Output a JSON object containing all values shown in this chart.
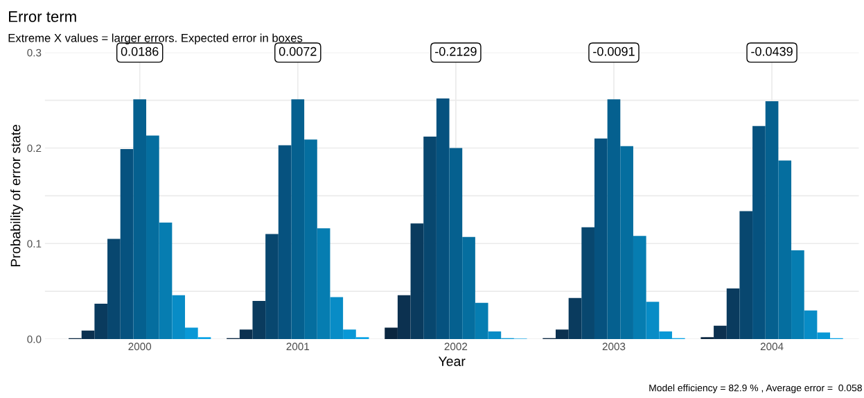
{
  "chart_data": {
    "type": "bar",
    "title": "Error term",
    "subtitle": "Extreme X values = larger errors. Expected error in boxes",
    "xlabel": "Year",
    "ylabel": "Probability of error state",
    "categories": [
      "2000",
      "2001",
      "2002",
      "2003",
      "2004"
    ],
    "series": [
      {
        "color": "#0b2740",
        "values": [
          0.001,
          0.001,
          0.012,
          0.001,
          0.002
        ]
      },
      {
        "color": "#0c3150",
        "values": [
          0.009,
          0.01,
          0.046,
          0.01,
          0.014
        ]
      },
      {
        "color": "#0a3b5e",
        "values": [
          0.037,
          0.04,
          0.121,
          0.043,
          0.053
        ]
      },
      {
        "color": "#08476f",
        "values": [
          0.105,
          0.11,
          0.212,
          0.117,
          0.134
        ]
      },
      {
        "color": "#06527f",
        "values": [
          0.199,
          0.203,
          0.252,
          0.21,
          0.223
        ]
      },
      {
        "color": "#05608f",
        "values": [
          0.251,
          0.251,
          0.2,
          0.251,
          0.249
        ]
      },
      {
        "color": "#056e9f",
        "values": [
          0.213,
          0.209,
          0.107,
          0.202,
          0.187
        ]
      },
      {
        "color": "#067db1",
        "values": [
          0.122,
          0.116,
          0.038,
          0.108,
          0.093
        ]
      },
      {
        "color": "#088cc6",
        "values": [
          0.046,
          0.044,
          0.008,
          0.039,
          0.03
        ]
      },
      {
        "color": "#0998d6",
        "values": [
          0.012,
          0.01,
          0.001,
          0.008,
          0.007
        ]
      },
      {
        "color": "#0aa3e6",
        "values": [
          0.002,
          0.002,
          0.0005,
          0.001,
          0.001
        ]
      }
    ],
    "ylim": [
      0,
      0.3
    ],
    "yticks": [
      {
        "value": 0,
        "label": "0.0"
      },
      {
        "value": 0.05,
        "label": null
      },
      0.1,
      {
        "value": 0.15,
        "label": null
      },
      0.2,
      {
        "value": 0.25,
        "label": null
      },
      0.3
    ],
    "grid": true,
    "annotations": [
      "0.0186",
      "0.0072",
      "-0.2129",
      "-0.0091",
      "-0.0439",
      "Model efficiency = 82.9 % , Average error =  0.058"
    ]
  }
}
